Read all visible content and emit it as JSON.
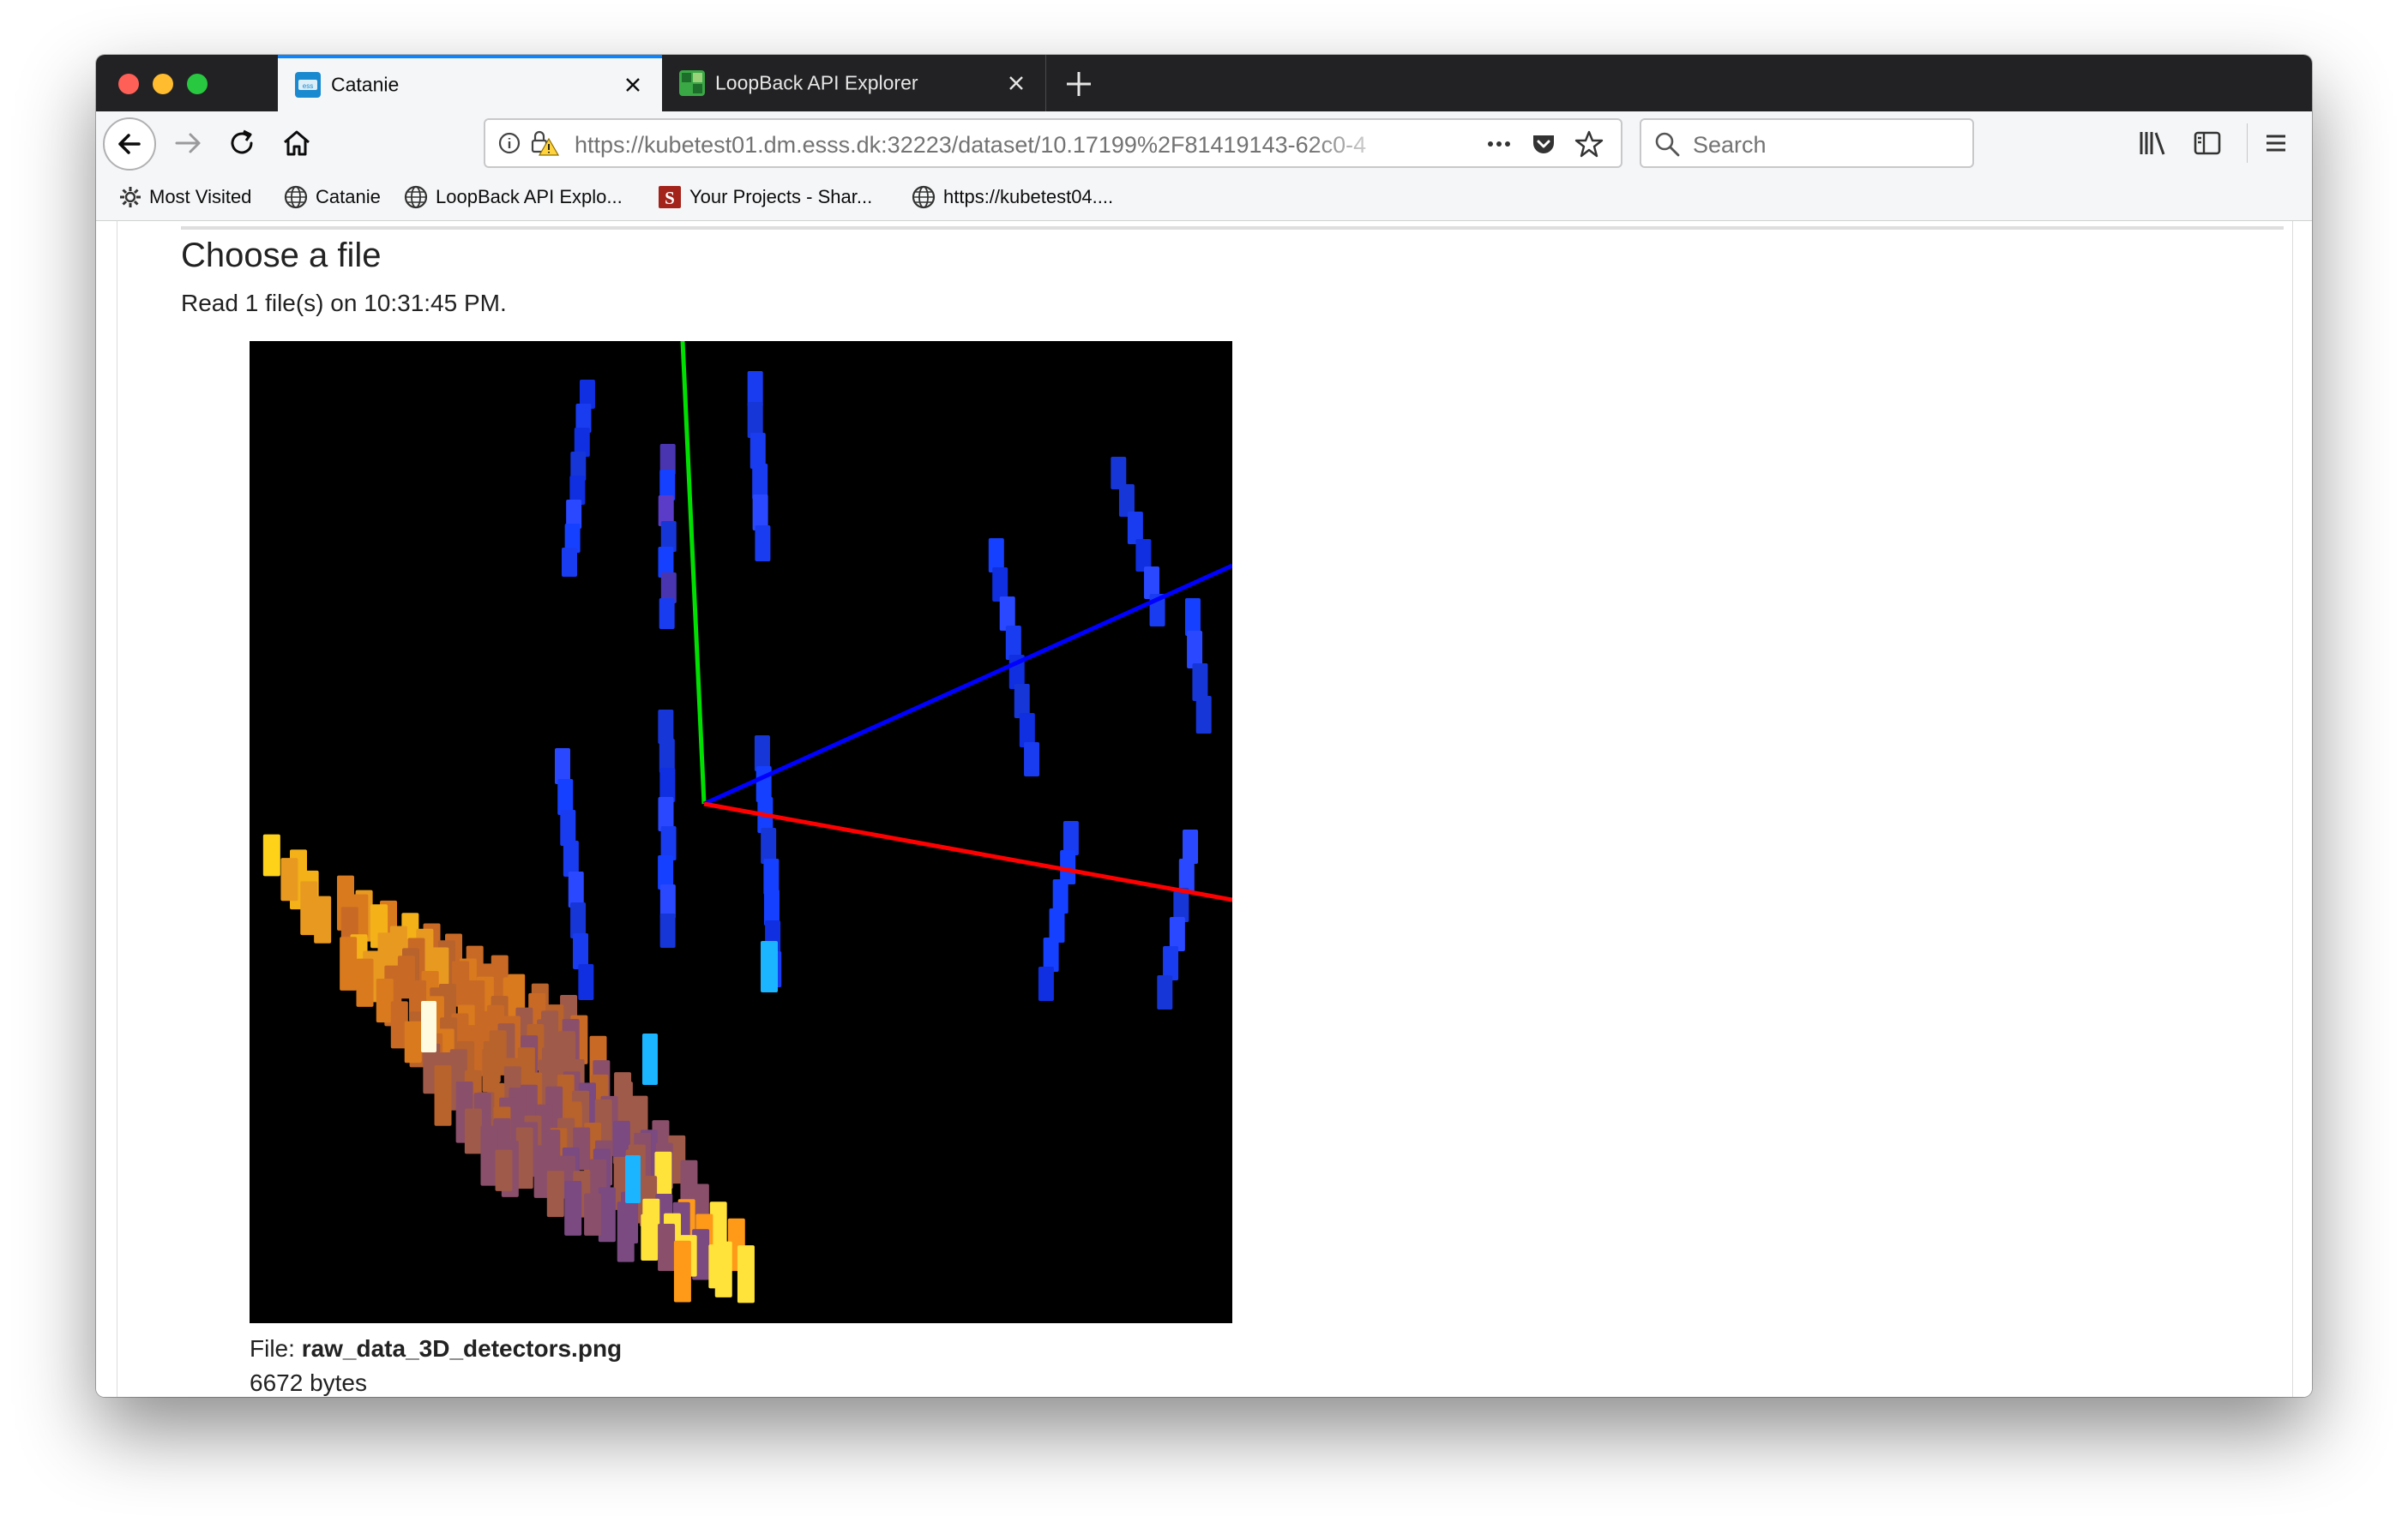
{
  "browser": {
    "tabs": [
      {
        "label": "Catanie",
        "active": true
      },
      {
        "label": "LoopBack API Explorer",
        "active": false
      }
    ],
    "url": "https://kubetest01.dm.esss.dk:32223/dataset/10.17199%2F81419143-62c0-4",
    "search_placeholder": "Search",
    "bookmarks": [
      {
        "label": "Most Visited",
        "icon": "gear-icon"
      },
      {
        "label": "Catanie",
        "icon": "globe-icon"
      },
      {
        "label": "LoopBack API Explo...",
        "icon": "globe-icon"
      },
      {
        "label": "Your Projects - Shar...",
        "icon": "sharelatex-icon"
      },
      {
        "label": "https://kubetest04....",
        "icon": "globe-icon"
      }
    ]
  },
  "page": {
    "title": "Choose a file",
    "read_info": "Read 1 file(s) on 10:31:45 PM.",
    "file_label": "File: ",
    "file_name": "raw_data_3D_detectors.png",
    "file_size": "6672 bytes"
  },
  "colors": {
    "axis_x": "#ff0000",
    "axis_y": "#00e000",
    "axis_z": "#0000ff",
    "accent": "#0a84ff"
  }
}
